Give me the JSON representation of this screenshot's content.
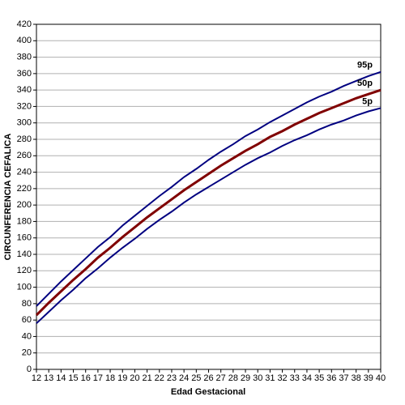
{
  "chart_data": {
    "type": "line",
    "xlabel": "Edad Gestacional",
    "ylabel": "CIRCUNFERENCIA CEFALICA",
    "x": [
      12,
      13,
      14,
      15,
      16,
      17,
      18,
      19,
      20,
      21,
      22,
      23,
      24,
      25,
      26,
      27,
      28,
      29,
      30,
      31,
      32,
      33,
      34,
      35,
      36,
      37,
      38,
      39,
      40
    ],
    "series": [
      {
        "name": "95p",
        "color": "#000080",
        "values": [
          77,
          92,
          107,
          121,
          135,
          149,
          161,
          175,
          187,
          199,
          211,
          222,
          234,
          244,
          255,
          265,
          274,
          284,
          292,
          301,
          309,
          317,
          325,
          332,
          338,
          345,
          351,
          357,
          362
        ]
      },
      {
        "name": "50p",
        "color": "#800000",
        "values": [
          66,
          81,
          95,
          109,
          122,
          136,
          148,
          161,
          173,
          185,
          196,
          207,
          218,
          228,
          238,
          248,
          257,
          266,
          274,
          283,
          290,
          298,
          305,
          312,
          318,
          324,
          330,
          335,
          340
        ]
      },
      {
        "name": "5p",
        "color": "#000080",
        "values": [
          56,
          70,
          84,
          97,
          111,
          123,
          136,
          148,
          159,
          171,
          182,
          192,
          203,
          213,
          222,
          231,
          240,
          249,
          257,
          264,
          272,
          279,
          285,
          292,
          298,
          303,
          309,
          314,
          318
        ]
      }
    ],
    "xlim": [
      12,
      40
    ],
    "xticks": [
      12,
      13,
      14,
      15,
      16,
      17,
      18,
      19,
      20,
      21,
      22,
      23,
      24,
      25,
      26,
      27,
      28,
      29,
      30,
      31,
      32,
      33,
      34,
      35,
      36,
      37,
      38,
      39,
      40
    ],
    "ylim": [
      0,
      420
    ],
    "yticks": [
      0,
      20,
      40,
      60,
      80,
      100,
      120,
      140,
      160,
      180,
      200,
      220,
      240,
      260,
      280,
      300,
      320,
      340,
      360,
      380,
      400,
      420
    ],
    "grid": true
  }
}
